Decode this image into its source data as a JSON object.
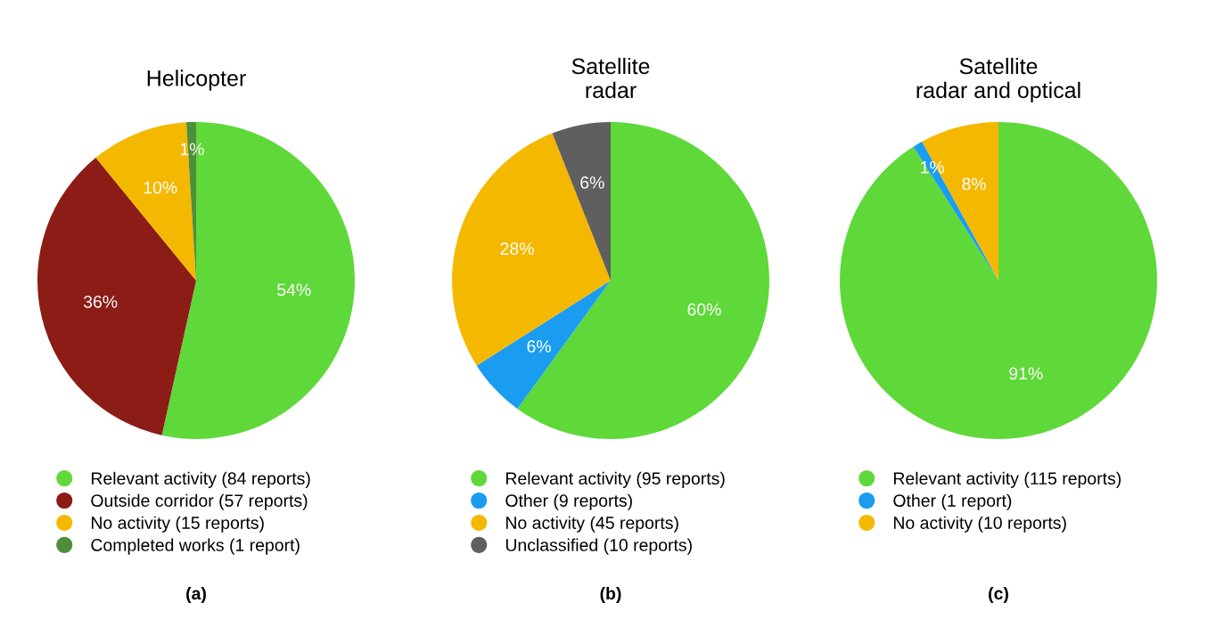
{
  "chart_data": [
    {
      "type": "pie",
      "title": "Helicopter",
      "categories": [
        "Relevant activity (84 reports)",
        "Outside corridor (57 reports)",
        "No activity (15 reports)",
        "Completed works (1 report)"
      ],
      "values": [
        54,
        36,
        10,
        1
      ],
      "colors": [
        "#5fd83a",
        "#8b1d16",
        "#f5b800",
        "#4f8f3a"
      ],
      "value_labels": [
        "54%",
        "36%",
        "10%",
        "1%"
      ],
      "legend": "bottom",
      "annotations": [
        "(a)"
      ]
    },
    {
      "type": "pie",
      "title": "Satellite\nradar",
      "categories": [
        "Relevant activity (95 reports)",
        "Other (9 reports)",
        "No activity (45 reports)",
        "Unclassified (10 reports)"
      ],
      "values": [
        60,
        6,
        28,
        6
      ],
      "colors": [
        "#5fd83a",
        "#1a9cf0",
        "#f5b800",
        "#5f5f5f"
      ],
      "value_labels": [
        "60%",
        "6%",
        "28%",
        "6%"
      ],
      "legend": "bottom",
      "annotations": [
        "(b)"
      ]
    },
    {
      "type": "pie",
      "title": "Satellite\nradar and optical",
      "categories": [
        "Relevant activity (115 reports)",
        "Other (1 report)",
        "No activity (10 reports)"
      ],
      "values": [
        91,
        1,
        8
      ],
      "colors": [
        "#5fd83a",
        "#1a9cf0",
        "#f5b800"
      ],
      "value_labels": [
        "91%",
        "1%",
        "8%"
      ],
      "legend": "bottom",
      "annotations": [
        "(c)"
      ]
    }
  ]
}
